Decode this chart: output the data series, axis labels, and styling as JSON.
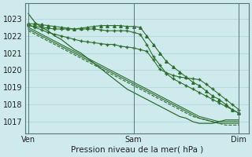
{
  "xlabel": "Pression niveau de la mer( hPa )",
  "bg_color": "#ceeaec",
  "grid_color": "#a8d4d8",
  "line_color": "#2d6e2d",
  "xtick_labels": [
    "Ven",
    "Sam",
    "Dim"
  ],
  "xtick_positions": [
    0,
    16,
    32
  ],
  "ytick_positions": [
    1017,
    1018,
    1019,
    1020,
    1021,
    1022,
    1023
  ],
  "ylim": [
    1016.3,
    1023.9
  ],
  "xlim": [
    -0.5,
    33.5
  ],
  "series": [
    {
      "y": [
        1023.3,
        1022.8,
        1022.5,
        1022.3,
        1022.0,
        1021.8,
        1021.5,
        1021.2,
        1021.0,
        1020.7,
        1020.4,
        1020.1,
        1019.8,
        1019.5,
        1019.2,
        1018.9,
        1018.7,
        1018.5,
        1018.3,
        1018.1,
        1017.9,
        1017.7,
        1017.5,
        1017.3,
        1017.2,
        1017.0,
        1016.9,
        1016.9,
        1016.9,
        1017.0,
        1017.1,
        1017.1,
        1017.1
      ],
      "marker": null,
      "linestyle": "-",
      "linewidth": 0.9
    },
    {
      "y": [
        1022.7,
        1022.7,
        1022.65,
        1022.6,
        1022.55,
        1022.5,
        1022.45,
        1022.4,
        1022.45,
        1022.5,
        1022.55,
        1022.6,
        1022.6,
        1022.6,
        1022.6,
        1022.55,
        1022.55,
        1022.5,
        1022.0,
        1021.5,
        1021.0,
        1020.5,
        1020.2,
        1019.9,
        1019.6,
        1019.3,
        1019.1,
        1018.8,
        1018.5,
        1018.3,
        1018.0,
        1017.7,
        1017.5
      ],
      "marker": "^",
      "markersize": 2.5,
      "linestyle": "-",
      "linewidth": 0.8
    },
    {
      "y": [
        1022.6,
        1022.55,
        1022.5,
        1022.45,
        1022.4,
        1022.4,
        1022.4,
        1022.4,
        1022.4,
        1022.4,
        1022.4,
        1022.35,
        1022.3,
        1022.3,
        1022.3,
        1022.3,
        1022.2,
        1022.1,
        1021.5,
        1020.8,
        1020.3,
        1019.8,
        1019.5,
        1019.3,
        1019.1,
        1018.9,
        1018.7,
        1018.5,
        1018.3,
        1018.1,
        1017.9,
        1017.7,
        1017.5
      ],
      "marker": "+",
      "markersize": 3,
      "linestyle": "-",
      "linewidth": 0.8
    },
    {
      "y": [
        1022.5,
        1022.3,
        1022.1,
        1021.9,
        1021.7,
        1021.5,
        1021.3,
        1021.1,
        1020.9,
        1020.7,
        1020.5,
        1020.3,
        1020.1,
        1019.9,
        1019.7,
        1019.5,
        1019.3,
        1019.1,
        1018.9,
        1018.7,
        1018.5,
        1018.3,
        1018.1,
        1017.9,
        1017.7,
        1017.5,
        1017.3,
        1017.2,
        1017.1,
        1017.0,
        1017.0,
        1017.0,
        1017.0
      ],
      "marker": null,
      "linestyle": "-",
      "linewidth": 0.8
    },
    {
      "y": [
        1022.4,
        1022.2,
        1022.0,
        1021.8,
        1021.6,
        1021.4,
        1021.2,
        1021.0,
        1020.8,
        1020.6,
        1020.4,
        1020.2,
        1020.0,
        1019.8,
        1019.6,
        1019.4,
        1019.2,
        1019.0,
        1018.8,
        1018.6,
        1018.4,
        1018.2,
        1018.0,
        1017.8,
        1017.6,
        1017.4,
        1017.2,
        1017.1,
        1017.0,
        1016.9,
        1016.9,
        1016.9,
        1016.9
      ],
      "marker": null,
      "linestyle": "-",
      "linewidth": 0.8
    },
    {
      "y": [
        1022.3,
        1022.1,
        1021.9,
        1021.7,
        1021.5,
        1021.3,
        1021.1,
        1020.9,
        1020.7,
        1020.5,
        1020.3,
        1020.1,
        1019.9,
        1019.7,
        1019.5,
        1019.3,
        1019.1,
        1018.9,
        1018.7,
        1018.5,
        1018.3,
        1018.1,
        1017.9,
        1017.7,
        1017.5,
        1017.3,
        1017.2,
        1017.1,
        1017.0,
        1016.9,
        1016.8,
        1016.8,
        1016.8
      ],
      "marker": null,
      "linestyle": "--",
      "linewidth": 0.8
    },
    {
      "y": [
        1022.65,
        1022.5,
        1022.35,
        1022.2,
        1022.1,
        1022.0,
        1021.9,
        1021.8,
        1021.7,
        1021.65,
        1021.6,
        1021.55,
        1021.5,
        1021.5,
        1021.4,
        1021.35,
        1021.3,
        1021.2,
        1021.1,
        1020.6,
        1020.05,
        1019.85,
        1019.7,
        1019.6,
        1019.55,
        1019.5,
        1019.45,
        1019.2,
        1018.9,
        1018.6,
        1018.3,
        1018.0,
        1017.7
      ],
      "marker": "+",
      "markersize": 2.5,
      "linestyle": "-",
      "linewidth": 0.8
    }
  ]
}
